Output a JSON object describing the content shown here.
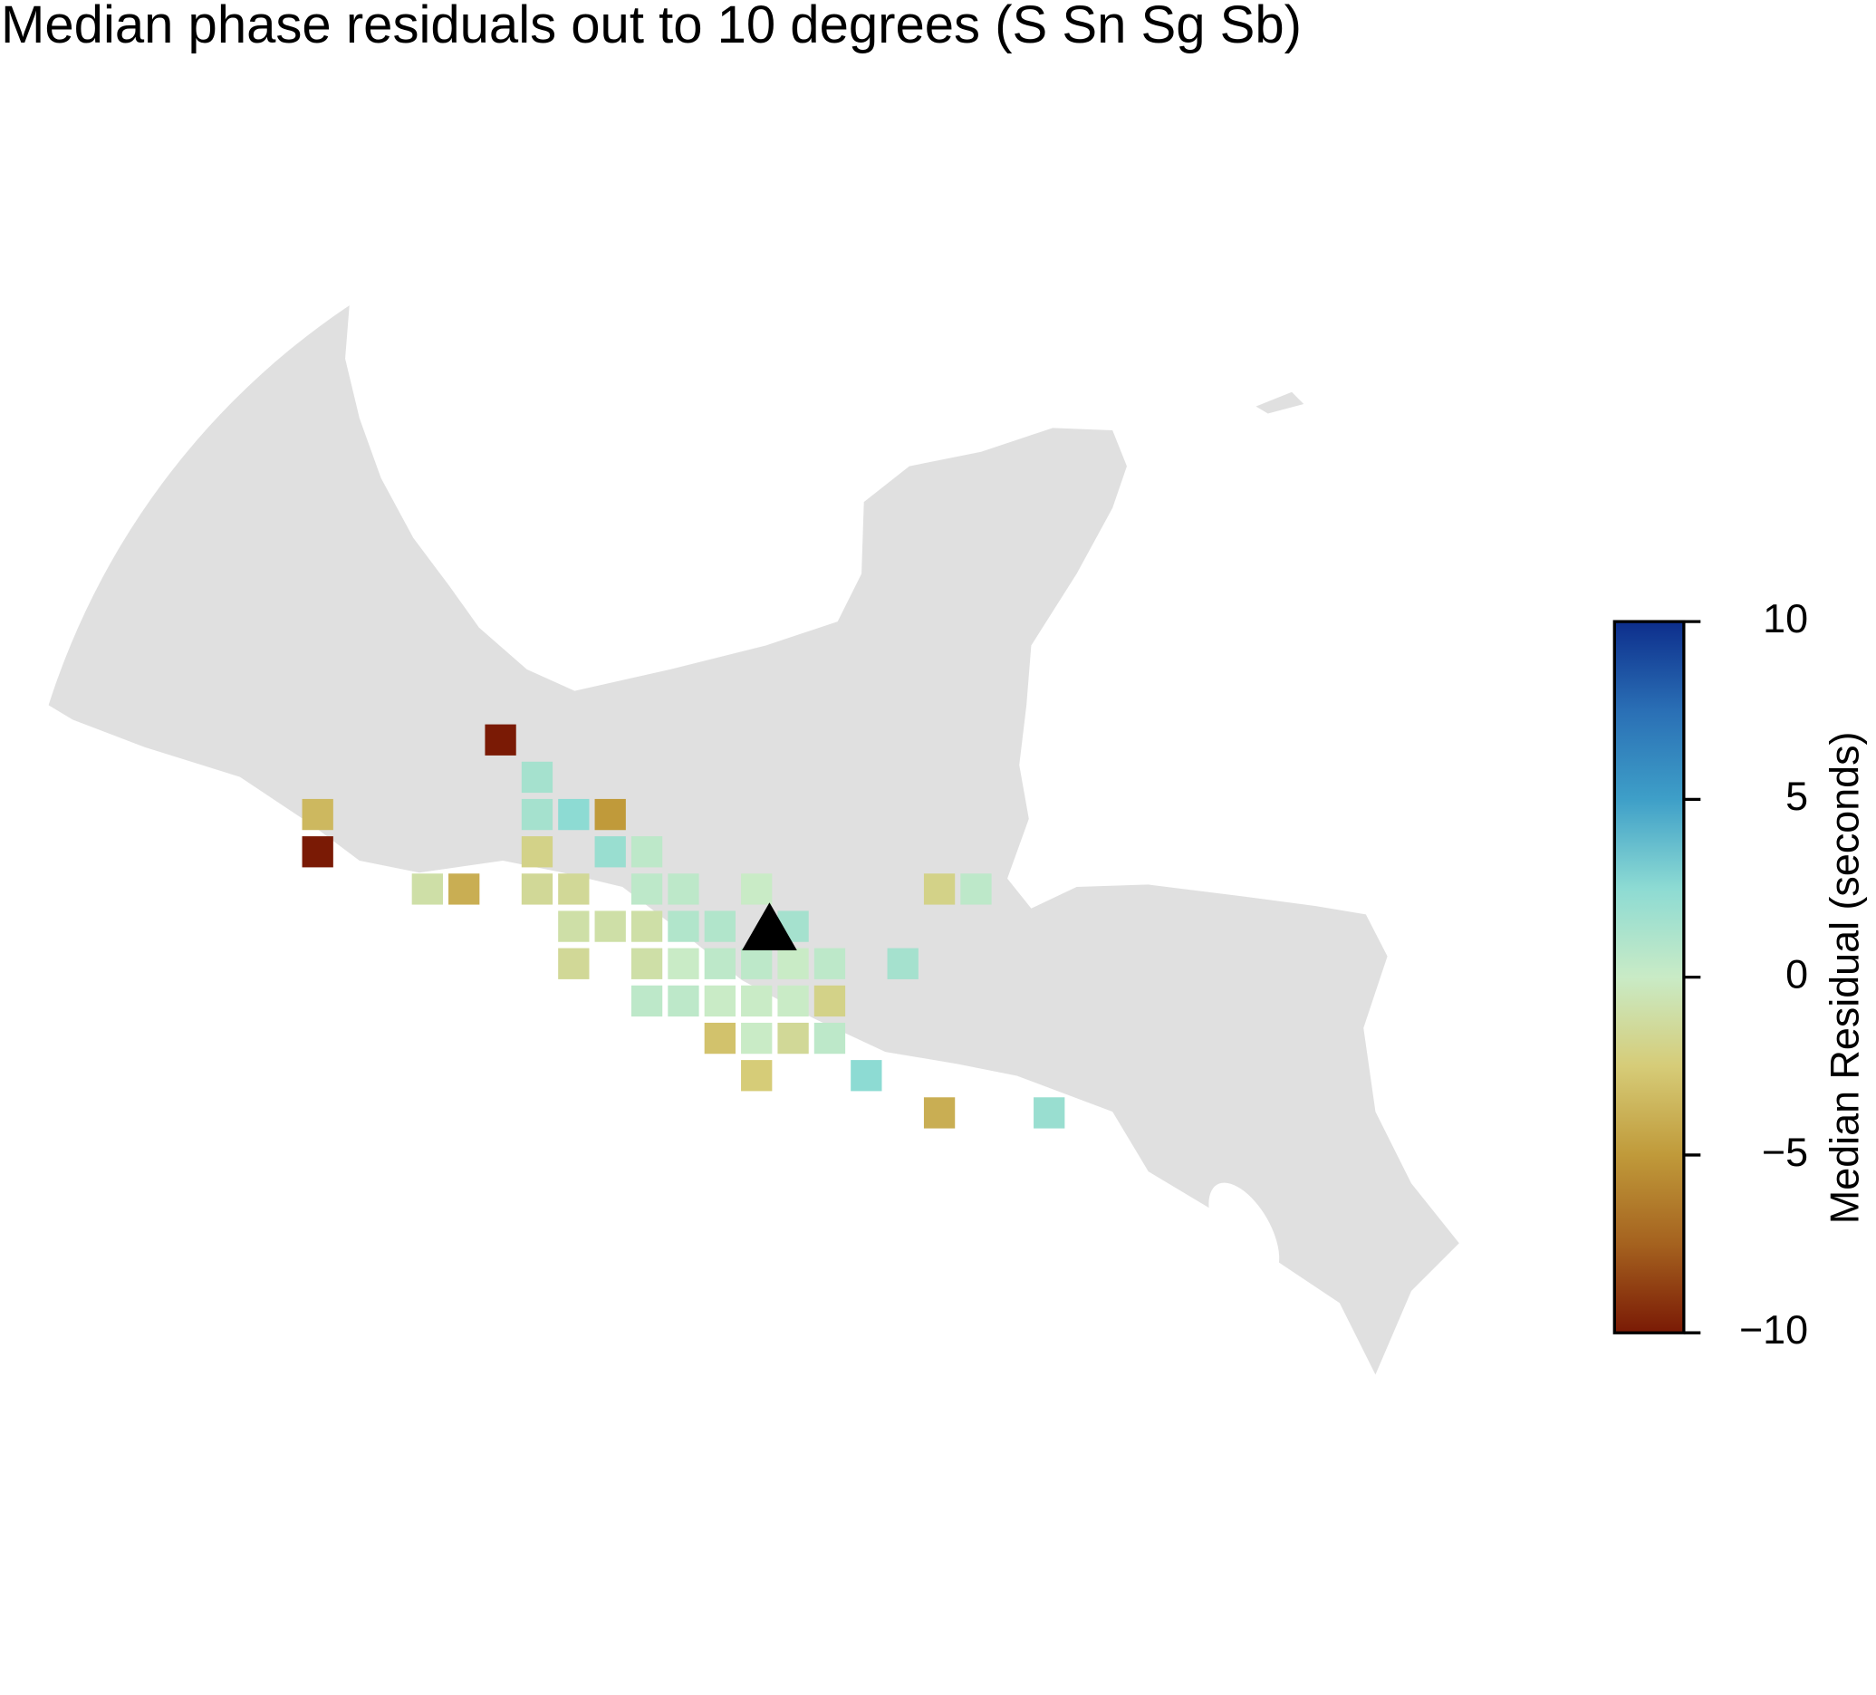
{
  "chart_data": {
    "type": "gridmap",
    "title": "Median phase residuals out to 10 degrees (S Sn Sg Sb)",
    "colorbar_label": "Median Residual (seconds)",
    "ylim": [
      -10,
      10
    ],
    "yticks": [
      {
        "value": 10,
        "label": "10"
      },
      {
        "value": 5,
        "label": "5"
      },
      {
        "value": 0,
        "label": "0"
      },
      {
        "value": -5,
        "label": "−5"
      },
      {
        "value": -10,
        "label": "−10"
      }
    ],
    "colormap": [
      "#7a1a05",
      "#a5621f",
      "#c09a3a",
      "#d6cc78",
      "#c9ebc6",
      "#8ddbd3",
      "#3e9fc8",
      "#2a6fb5",
      "#0d2e8c"
    ],
    "values": [
      -10,
      1.5,
      -3.5,
      1.5,
      2.5,
      -5,
      -10,
      -2,
      2,
      0.5,
      -1,
      -4,
      -1.5,
      -1.5,
      0.5,
      0.5,
      0,
      -2,
      0.5,
      -1,
      -1,
      -1,
      1,
      1,
      1.5,
      -1.5,
      -1,
      0,
      0.5,
      0.5,
      0,
      0.5,
      1.5,
      0.5,
      0.5,
      0,
      0,
      0,
      -2,
      -3,
      0,
      -1.5,
      0.5,
      -2.5,
      2.5,
      -4,
      2
    ]
  }
}
